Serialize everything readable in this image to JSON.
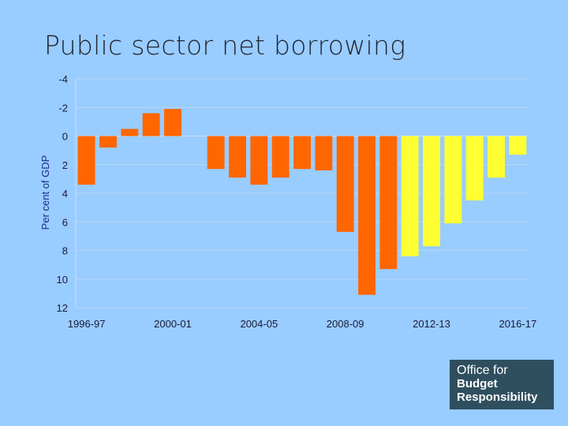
{
  "slide": {
    "title": "Public sector net borrowing"
  },
  "logo": {
    "line1": "Office for",
    "line2": "Budget",
    "line3": "Responsibility"
  },
  "colors": {
    "background": "#99ccff",
    "outturn": "#ff6600",
    "forecast": "#ffff33",
    "grid": "#b8d8f8"
  },
  "chart_data": {
    "type": "bar",
    "title": "",
    "xlabel": "",
    "ylabel": "Per cent of GDP",
    "ylim": [
      12,
      -4
    ],
    "y_inverted": true,
    "yticks": [
      -4,
      -2,
      0,
      2,
      4,
      6,
      8,
      10,
      12
    ],
    "grid": true,
    "categories": [
      "1996-97",
      "1997-98",
      "1998-99",
      "1999-00",
      "2000-01",
      "2001-02",
      "2002-03",
      "2003-04",
      "2004-05",
      "2005-06",
      "2006-07",
      "2007-08",
      "2008-09",
      "2009-10",
      "2010-11",
      "2011-12",
      "2012-13",
      "2013-14",
      "2014-15",
      "2015-16",
      "2016-17"
    ],
    "xtick_labels": [
      "1996-97",
      "2000-01",
      "2004-05",
      "2008-09",
      "2012-13",
      "2016-17"
    ],
    "series": [
      {
        "values": [
          3.4,
          0.8,
          -0.5,
          -1.6,
          -1.9,
          null,
          2.3,
          2.9,
          3.4,
          2.9,
          2.3,
          2.4,
          6.7,
          11.1,
          9.3,
          null,
          null,
          null,
          null,
          null,
          null
        ]
      },
      {
        "values": [
          null,
          null,
          null,
          null,
          null,
          null,
          null,
          null,
          null,
          null,
          null,
          null,
          null,
          null,
          null,
          8.4,
          7.7,
          6.1,
          4.5,
          2.9,
          1.3
        ]
      }
    ]
  }
}
